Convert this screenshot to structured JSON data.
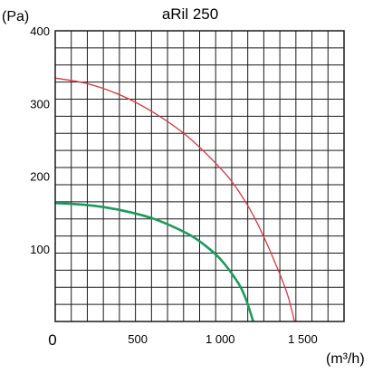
{
  "chart_data": {
    "type": "line",
    "title": "aRil 250",
    "ylabel": "(Pa)",
    "xlabel": "(m³/h)",
    "origin_label": "0",
    "xlim": [
      0,
      1750
    ],
    "ylim": [
      0,
      400
    ],
    "grid": true,
    "x_ticks": [
      {
        "value": 500,
        "label": "500"
      },
      {
        "value": 1000,
        "label": "1 000"
      },
      {
        "value": 1500,
        "label": "1 500"
      }
    ],
    "y_ticks": [
      {
        "value": 100,
        "label": "100"
      },
      {
        "value": 200,
        "label": "200"
      },
      {
        "value": 300,
        "label": "300"
      },
      {
        "value": 400,
        "label": "400"
      }
    ],
    "series": [
      {
        "color": "#d9363e",
        "x": [
          0,
          200,
          400,
          600,
          800,
          1000,
          1100,
          1200,
          1300,
          1400,
          1450
        ],
        "y": [
          335,
          327,
          311,
          287,
          255,
          211,
          183,
          146,
          98,
          42,
          0
        ]
      },
      {
        "color": "#1a9a5c",
        "x": [
          0,
          200,
          400,
          600,
          800,
          900,
          1000,
          1100,
          1150,
          1200
        ],
        "y": [
          163,
          160,
          153,
          141,
          121,
          106,
          86,
          56,
          34,
          0
        ]
      }
    ]
  }
}
